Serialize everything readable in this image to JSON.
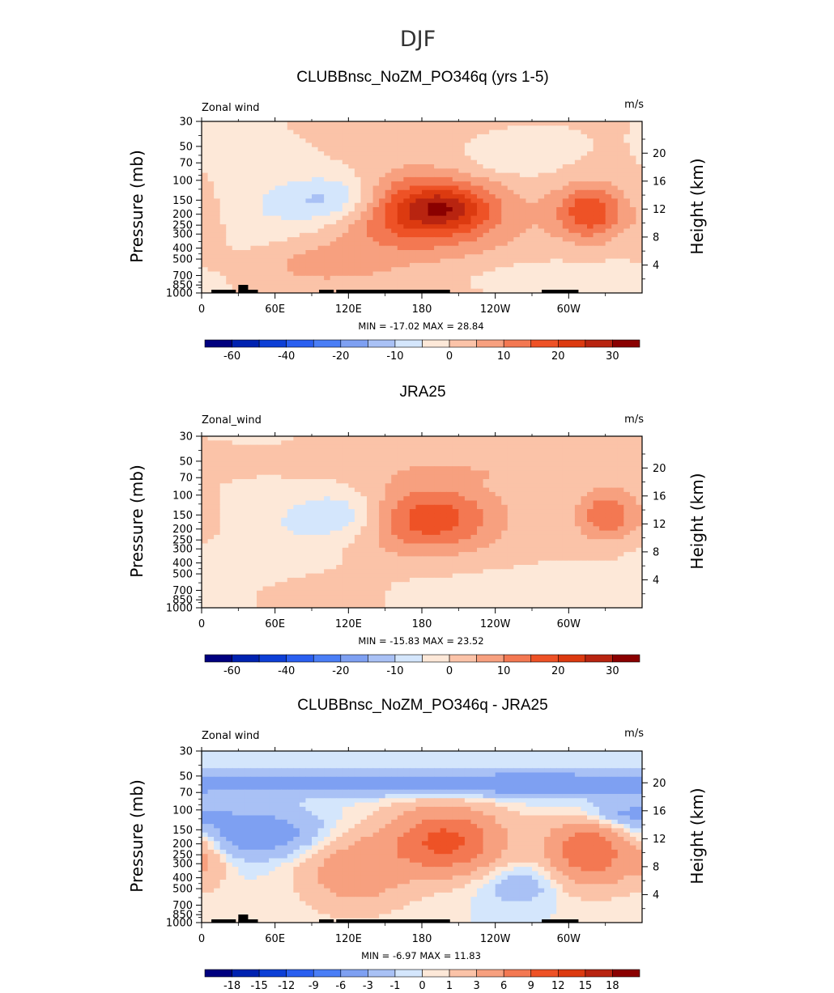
{
  "figure": {
    "title": "DJF"
  },
  "colors": {
    "main_palette": [
      "#00007f",
      "#0022b0",
      "#0d3fd6",
      "#2a5ff0",
      "#4a7ef6",
      "#7ea0f2",
      "#a9c1f5",
      "#d4e6fc",
      "#fde8d8",
      "#fbc3a8",
      "#f7a07f",
      "#f37852",
      "#ee5226",
      "#dc3a10",
      "#b82410",
      "#8a0000"
    ],
    "bar_levels": [
      "#00007f",
      "#0022b0",
      "#0d3fd6",
      "#2a5ff0",
      "#4a7ef6",
      "#7ea0f2",
      "#a9c1f5",
      "#d4e6fc",
      "#fde8d8",
      "#fbc3a8",
      "#f7a07f",
      "#f37852",
      "#ee5226",
      "#dc3a10",
      "#b82410",
      "#8a0000"
    ]
  },
  "chart_data": [
    {
      "type": "heatmap",
      "title": "CLUBBnsc_NoZM_PO346q (yrs 1-5)",
      "variable_label": "Zonal wind",
      "units": "m/s",
      "ylabel": "Pressure (mb)",
      "y2label": "Height (km)",
      "x_ticks": [
        "0",
        "60E",
        "120E",
        "180",
        "120W",
        "60W"
      ],
      "x_tick_values": [
        0,
        60,
        120,
        180,
        240,
        300
      ],
      "xlim": [
        0,
        360
      ],
      "y_ticks": [
        "30",
        "50",
        "70",
        "100",
        "150",
        "200",
        "250",
        "300",
        "400",
        "500",
        "700",
        "850",
        "1000"
      ],
      "y_tick_values": [
        30,
        50,
        70,
        100,
        150,
        200,
        250,
        300,
        400,
        500,
        700,
        850,
        1000
      ],
      "ylim": [
        1000,
        30
      ],
      "y2_ticks": [
        "20",
        "16",
        "12",
        "8",
        "4"
      ],
      "y2_tick_values": [
        20,
        16,
        12,
        8,
        4
      ],
      "stats": "MIN = -17.02   MAX =  28.84",
      "min": -17.02,
      "max": 28.84,
      "colorbar_labels": [
        "-60",
        "-40",
        "-20",
        "-10",
        "0",
        "10",
        "20",
        "30"
      ],
      "colorbar_levels": [
        -70,
        -60,
        -50,
        -40,
        -30,
        -20,
        -15,
        -10,
        -5,
        0,
        5,
        10,
        15,
        20,
        25,
        30
      ],
      "blobs": [
        {
          "lon": 180,
          "p": 180,
          "w": 45,
          "h": 5.2,
          "amp": 22
        },
        {
          "lon": 200,
          "p": 180,
          "w": 22,
          "h": 2.6,
          "amp": 9
        },
        {
          "lon": 318,
          "p": 190,
          "w": 20,
          "h": 4.0,
          "amp": 19
        },
        {
          "lon": 110,
          "p": 150,
          "w": 30,
          "h": 3.6,
          "amp": -15
        },
        {
          "lon": 50,
          "p": 200,
          "w": 35,
          "h": 5.5,
          "amp": -4.5
        },
        {
          "lon": 250,
          "p": 70,
          "w": 30,
          "h": 2.5,
          "amp": -4
        },
        {
          "lon": 270,
          "p": 700,
          "w": 70,
          "h": 3.0,
          "amp": -3.5
        },
        {
          "lon": 95,
          "p": 560,
          "w": 40,
          "h": 2.8,
          "amp": 5.5
        },
        {
          "lon": 5,
          "p": 250,
          "w": 10,
          "h": 4.5,
          "amp": 4.5
        },
        {
          "lon": 180,
          "p": 400,
          "w": 90,
          "h": 8.0,
          "amp": 3.5
        }
      ],
      "topography": [
        [
          8,
          28
        ],
        [
          30,
          38
        ],
        [
          38,
          46
        ],
        [
          96,
          108
        ],
        [
          110,
          203
        ],
        [
          278,
          308
        ]
      ]
    },
    {
      "type": "heatmap",
      "title": "JRA25",
      "variable_label": "Zonal_wind",
      "units": "m/s",
      "ylabel": "Pressure (mb)",
      "y2label": "Height (km)",
      "x_ticks": [
        "0",
        "60E",
        "120E",
        "180",
        "120W",
        "60W"
      ],
      "x_tick_values": [
        0,
        60,
        120,
        180,
        240,
        300
      ],
      "xlim": [
        0,
        360
      ],
      "y_ticks": [
        "30",
        "50",
        "70",
        "100",
        "150",
        "200",
        "250",
        "300",
        "400",
        "500",
        "700",
        "850",
        "1000"
      ],
      "y_tick_values": [
        30,
        50,
        70,
        100,
        150,
        200,
        250,
        300,
        400,
        500,
        700,
        850,
        1000
      ],
      "ylim": [
        1000,
        30
      ],
      "y2_ticks": [
        "20",
        "16",
        "12",
        "8",
        "4"
      ],
      "y2_tick_values": [
        20,
        16,
        12,
        8,
        4
      ],
      "stats": "MIN = -15.83   MAX =  23.52",
      "min": -15.83,
      "max": 23.52,
      "colorbar_labels": [
        "-60",
        "-40",
        "-20",
        "-10",
        "0",
        "10",
        "20",
        "30"
      ],
      "colorbar_levels": [
        -70,
        -60,
        -50,
        -40,
        -30,
        -20,
        -15,
        -10,
        -5,
        0,
        5,
        10,
        15,
        20,
        25,
        30
      ],
      "blobs": [
        {
          "lon": 183,
          "p": 160,
          "w": 42,
          "h": 5.0,
          "amp": 19
        },
        {
          "lon": 332,
          "p": 150,
          "w": 18,
          "h": 3.8,
          "amp": 15
        },
        {
          "lon": 118,
          "p": 150,
          "w": 30,
          "h": 3.6,
          "amp": -12
        },
        {
          "lon": 45,
          "p": 250,
          "w": 40,
          "h": 6.0,
          "amp": -4
        },
        {
          "lon": 270,
          "p": 760,
          "w": 80,
          "h": 3.0,
          "amp": -3.5
        },
        {
          "lon": 95,
          "p": 750,
          "w": 35,
          "h": 2.5,
          "amp": 4
        },
        {
          "lon": 230,
          "p": 60,
          "w": 90,
          "h": 2.0,
          "amp": 3.5
        },
        {
          "lon": 5,
          "p": 180,
          "w": 10,
          "h": 3.0,
          "amp": 3.5
        }
      ],
      "topography": []
    },
    {
      "type": "heatmap",
      "title": "CLUBBnsc_NoZM_PO346q - JRA25",
      "variable_label": "Zonal wind",
      "units": "m/s",
      "ylabel": "Pressure (mb)",
      "y2label": "Height (km)",
      "x_ticks": [
        "0",
        "60E",
        "120E",
        "180",
        "120W",
        "60W"
      ],
      "x_tick_values": [
        0,
        60,
        120,
        180,
        240,
        300
      ],
      "xlim": [
        0,
        360
      ],
      "y_ticks": [
        "30",
        "50",
        "70",
        "100",
        "150",
        "200",
        "250",
        "300",
        "400",
        "500",
        "700",
        "850",
        "1000"
      ],
      "y_tick_values": [
        30,
        50,
        70,
        100,
        150,
        200,
        250,
        300,
        400,
        500,
        700,
        850,
        1000
      ],
      "ylim": [
        1000,
        30
      ],
      "y2_ticks": [
        "20",
        "16",
        "12",
        "8",
        "4"
      ],
      "y2_tick_values": [
        20,
        16,
        12,
        8,
        4
      ],
      "stats": "MIN =   -6.97   MAX =  11.83",
      "min": -6.97,
      "max": 11.83,
      "colorbar_labels": [
        "-18",
        "-15",
        "-12",
        "-9",
        "-6",
        "-3",
        "-1",
        "0",
        "1",
        "3",
        "6",
        "9",
        "12",
        "15",
        "18"
      ],
      "colorbar_levels": [
        -21,
        -18,
        -15,
        -12,
        -9,
        -6,
        -3,
        -1,
        0,
        1,
        3,
        6,
        9,
        12,
        15,
        18
      ],
      "blobs": [
        {
          "lon": 200,
          "p": 190,
          "w": 32,
          "h": 4.8,
          "amp": 10
        },
        {
          "lon": 318,
          "p": 230,
          "w": 25,
          "h": 5.0,
          "amp": 9
        },
        {
          "lon": 125,
          "p": 350,
          "w": 30,
          "h": 5.5,
          "amp": 5
        },
        {
          "lon": 45,
          "p": 160,
          "w": 40,
          "h": 3.5,
          "amp": -5
        },
        {
          "lon": 150,
          "p": 58,
          "w": 120,
          "h": 1.8,
          "amp": -4
        },
        {
          "lon": 300,
          "p": 60,
          "w": 60,
          "h": 2.0,
          "amp": -3.5
        },
        {
          "lon": 260,
          "p": 450,
          "w": 25,
          "h": 3.0,
          "amp": -2.5
        },
        {
          "lon": 5,
          "p": 280,
          "w": 12,
          "h": 4.0,
          "amp": 2.5
        },
        {
          "lon": 340,
          "p": 110,
          "w": 25,
          "h": 2.0,
          "amp": -4
        }
      ],
      "topography": [
        [
          8,
          28
        ],
        [
          30,
          38
        ],
        [
          38,
          46
        ],
        [
          96,
          108
        ],
        [
          110,
          203
        ],
        [
          278,
          308
        ]
      ]
    }
  ]
}
